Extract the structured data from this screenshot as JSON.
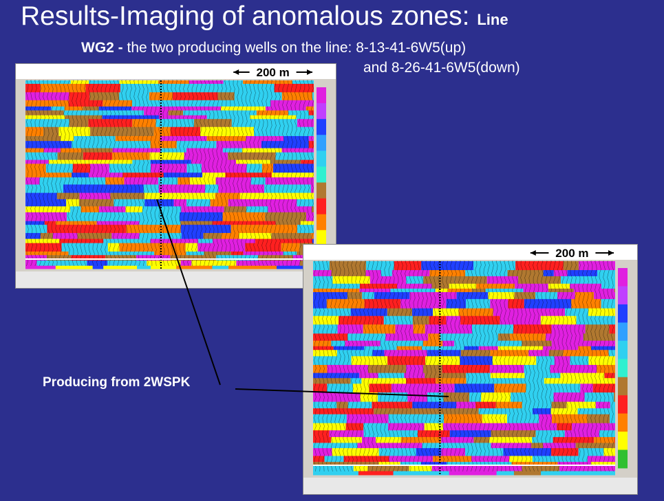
{
  "title": {
    "main": "Results-Imaging of anomalous zones:",
    "suffix": "Line"
  },
  "subtitle": {
    "lead": "WG2 -",
    "line1": "the two producing wells on the line: 8-13-41-6W5(up)",
    "line2": "and 8-26-41-6W5(down)"
  },
  "panels": [
    {
      "scale_label": "200 m"
    },
    {
      "scale_label": "200 m"
    }
  ],
  "annotation": "Producing from 2WSPK"
}
